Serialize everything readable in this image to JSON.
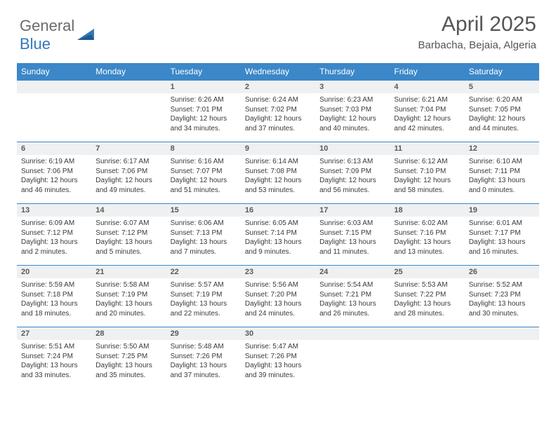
{
  "logo": {
    "text_a": "General",
    "text_b": "Blue"
  },
  "title": "April 2025",
  "location": "Barbacha, Bejaia, Algeria",
  "colors": {
    "header_blue": "#3b87c8",
    "rule_blue": "#3b87c8",
    "daynum_bg": "#eef0f2",
    "logo_gray": "#6b6b6b",
    "logo_blue": "#3478b9",
    "text": "#333333"
  },
  "weekdays": [
    "Sunday",
    "Monday",
    "Tuesday",
    "Wednesday",
    "Thursday",
    "Friday",
    "Saturday"
  ],
  "weeks": [
    [
      null,
      null,
      {
        "n": "1",
        "sr": "6:26 AM",
        "ss": "7:01 PM",
        "dl": "12 hours and 34 minutes."
      },
      {
        "n": "2",
        "sr": "6:24 AM",
        "ss": "7:02 PM",
        "dl": "12 hours and 37 minutes."
      },
      {
        "n": "3",
        "sr": "6:23 AM",
        "ss": "7:03 PM",
        "dl": "12 hours and 40 minutes."
      },
      {
        "n": "4",
        "sr": "6:21 AM",
        "ss": "7:04 PM",
        "dl": "12 hours and 42 minutes."
      },
      {
        "n": "5",
        "sr": "6:20 AM",
        "ss": "7:05 PM",
        "dl": "12 hours and 44 minutes."
      }
    ],
    [
      {
        "n": "6",
        "sr": "6:19 AM",
        "ss": "7:06 PM",
        "dl": "12 hours and 46 minutes."
      },
      {
        "n": "7",
        "sr": "6:17 AM",
        "ss": "7:06 PM",
        "dl": "12 hours and 49 minutes."
      },
      {
        "n": "8",
        "sr": "6:16 AM",
        "ss": "7:07 PM",
        "dl": "12 hours and 51 minutes."
      },
      {
        "n": "9",
        "sr": "6:14 AM",
        "ss": "7:08 PM",
        "dl": "12 hours and 53 minutes."
      },
      {
        "n": "10",
        "sr": "6:13 AM",
        "ss": "7:09 PM",
        "dl": "12 hours and 56 minutes."
      },
      {
        "n": "11",
        "sr": "6:12 AM",
        "ss": "7:10 PM",
        "dl": "12 hours and 58 minutes."
      },
      {
        "n": "12",
        "sr": "6:10 AM",
        "ss": "7:11 PM",
        "dl": "13 hours and 0 minutes."
      }
    ],
    [
      {
        "n": "13",
        "sr": "6:09 AM",
        "ss": "7:12 PM",
        "dl": "13 hours and 2 minutes."
      },
      {
        "n": "14",
        "sr": "6:07 AM",
        "ss": "7:12 PM",
        "dl": "13 hours and 5 minutes."
      },
      {
        "n": "15",
        "sr": "6:06 AM",
        "ss": "7:13 PM",
        "dl": "13 hours and 7 minutes."
      },
      {
        "n": "16",
        "sr": "6:05 AM",
        "ss": "7:14 PM",
        "dl": "13 hours and 9 minutes."
      },
      {
        "n": "17",
        "sr": "6:03 AM",
        "ss": "7:15 PM",
        "dl": "13 hours and 11 minutes."
      },
      {
        "n": "18",
        "sr": "6:02 AM",
        "ss": "7:16 PM",
        "dl": "13 hours and 13 minutes."
      },
      {
        "n": "19",
        "sr": "6:01 AM",
        "ss": "7:17 PM",
        "dl": "13 hours and 16 minutes."
      }
    ],
    [
      {
        "n": "20",
        "sr": "5:59 AM",
        "ss": "7:18 PM",
        "dl": "13 hours and 18 minutes."
      },
      {
        "n": "21",
        "sr": "5:58 AM",
        "ss": "7:19 PM",
        "dl": "13 hours and 20 minutes."
      },
      {
        "n": "22",
        "sr": "5:57 AM",
        "ss": "7:19 PM",
        "dl": "13 hours and 22 minutes."
      },
      {
        "n": "23",
        "sr": "5:56 AM",
        "ss": "7:20 PM",
        "dl": "13 hours and 24 minutes."
      },
      {
        "n": "24",
        "sr": "5:54 AM",
        "ss": "7:21 PM",
        "dl": "13 hours and 26 minutes."
      },
      {
        "n": "25",
        "sr": "5:53 AM",
        "ss": "7:22 PM",
        "dl": "13 hours and 28 minutes."
      },
      {
        "n": "26",
        "sr": "5:52 AM",
        "ss": "7:23 PM",
        "dl": "13 hours and 30 minutes."
      }
    ],
    [
      {
        "n": "27",
        "sr": "5:51 AM",
        "ss": "7:24 PM",
        "dl": "13 hours and 33 minutes."
      },
      {
        "n": "28",
        "sr": "5:50 AM",
        "ss": "7:25 PM",
        "dl": "13 hours and 35 minutes."
      },
      {
        "n": "29",
        "sr": "5:48 AM",
        "ss": "7:26 PM",
        "dl": "13 hours and 37 minutes."
      },
      {
        "n": "30",
        "sr": "5:47 AM",
        "ss": "7:26 PM",
        "dl": "13 hours and 39 minutes."
      },
      null,
      null,
      null
    ]
  ],
  "labels": {
    "sunrise": "Sunrise:",
    "sunset": "Sunset:",
    "daylight": "Daylight:"
  }
}
